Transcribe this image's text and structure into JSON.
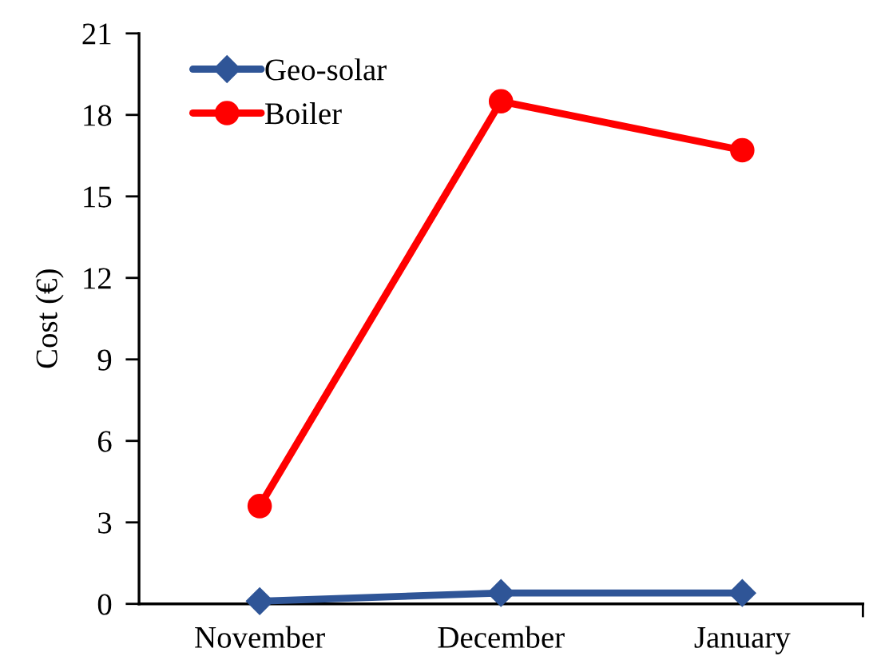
{
  "chart_data": {
    "type": "line",
    "ylabel": "Cost (€)",
    "categories": [
      "November",
      "December",
      "January"
    ],
    "series": [
      {
        "name": "Geo-solar",
        "color": "#2f5597",
        "values": [
          0.1,
          0.4,
          0.4
        ],
        "marker": "diamond"
      },
      {
        "name": "Boiler",
        "color": "#ff0000",
        "values": [
          3.6,
          18.5,
          16.7
        ],
        "marker": "circle"
      }
    ],
    "ylim": [
      0,
      21
    ],
    "yticks": [
      0,
      3,
      6,
      9,
      12,
      15,
      18,
      21
    ],
    "grid": false,
    "legend": "top left",
    "line_style": "solid"
  }
}
